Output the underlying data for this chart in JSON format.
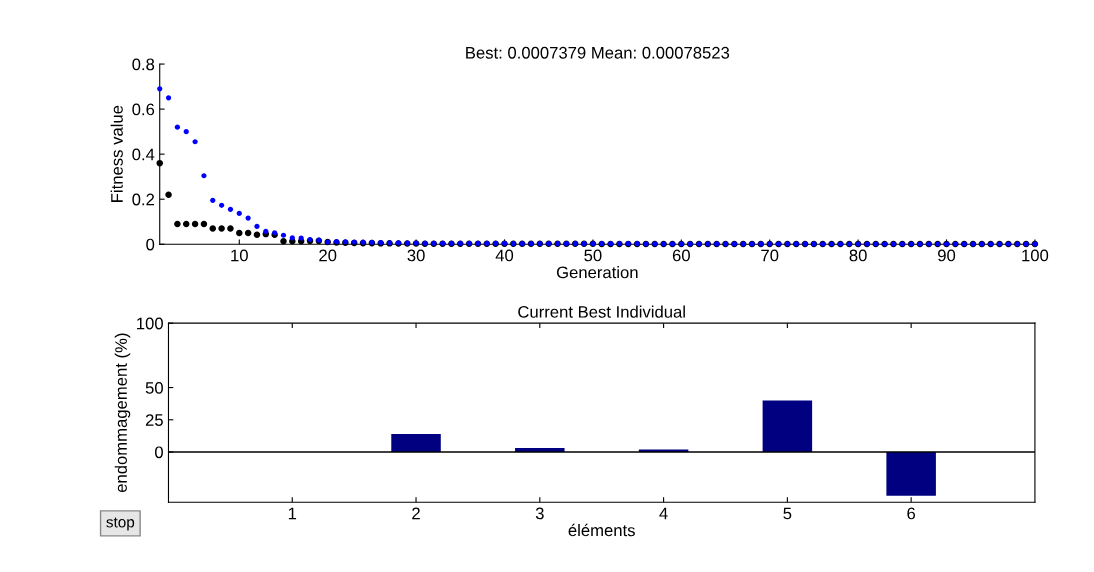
{
  "chart_data": [
    {
      "type": "scatter",
      "title": "Best: 0.0007379 Mean: 0.00078523",
      "xlabel": "Generation",
      "ylabel": "Fitness value",
      "marker": "circle",
      "grid": false,
      "legend": false,
      "x": [
        1,
        2,
        3,
        4,
        5,
        6,
        7,
        8,
        9,
        10,
        11,
        12,
        13,
        14,
        15,
        16,
        17,
        18,
        19,
        20,
        21,
        22,
        23,
        24,
        25,
        26,
        27,
        28,
        29,
        30,
        31,
        32,
        33,
        34,
        35,
        36,
        37,
        38,
        39,
        40,
        41,
        42,
        43,
        44,
        45,
        46,
        47,
        48,
        49,
        50,
        51,
        52,
        53,
        54,
        55,
        56,
        57,
        58,
        59,
        60,
        61,
        62,
        63,
        64,
        65,
        66,
        67,
        68,
        69,
        70,
        71,
        72,
        73,
        74,
        75,
        76,
        77,
        78,
        79,
        80,
        81,
        82,
        83,
        84,
        85,
        86,
        87,
        88,
        89,
        90,
        91,
        92,
        93,
        94,
        95,
        96,
        97,
        98,
        99,
        100
      ],
      "series": [
        {
          "color": "#000000",
          "values": [
            0.36,
            0.22,
            0.09,
            0.09,
            0.09,
            0.09,
            0.07,
            0.07,
            0.07,
            0.05,
            0.05,
            0.042,
            0.045,
            0.042,
            0.013,
            0.013,
            0.013,
            0.015,
            0.015,
            0.01,
            0.008,
            0.007,
            0.006,
            0.005,
            0.005,
            0.004,
            0.004,
            0.003,
            0.003,
            0.003,
            0.002,
            0.002,
            0.002,
            0.002,
            0.002,
            0.002,
            0.002,
            0.002,
            0.002,
            0.002,
            0.002,
            0.002,
            0.002,
            0.002,
            0.002,
            0.002,
            0.002,
            0.002,
            0.002,
            0.002,
            0.001,
            0.001,
            0.001,
            0.001,
            0.001,
            0.001,
            0.001,
            0.001,
            0.001,
            0.001,
            0.001,
            0.001,
            0.001,
            0.001,
            0.001,
            0.001,
            0.001,
            0.001,
            0.001,
            0.001,
            0.001,
            0.001,
            0.001,
            0.001,
            0.001,
            0.001,
            0.001,
            0.001,
            0.001,
            0.001,
            0.001,
            0.001,
            0.001,
            0.001,
            0.001,
            0.001,
            0.001,
            0.001,
            0.001,
            0.001,
            0.001,
            0.001,
            0.001,
            0.001,
            0.001,
            0.001,
            0.001,
            0.001,
            0.001,
            0.001
          ]
        },
        {
          "color": "#0000ff",
          "values": [
            0.69,
            0.65,
            0.52,
            0.5,
            0.455,
            0.304,
            0.195,
            0.173,
            0.155,
            0.137,
            0.116,
            0.079,
            0.057,
            0.051,
            0.04,
            0.028,
            0.027,
            0.021,
            0.018,
            0.01,
            0.012,
            0.011,
            0.01,
            0.009,
            0.008,
            0.007,
            0.006,
            0.006,
            0.005,
            0.005,
            0.004,
            0.004,
            0.004,
            0.004,
            0.004,
            0.004,
            0.004,
            0.004,
            0.004,
            0.004,
            0.003,
            0.003,
            0.003,
            0.003,
            0.003,
            0.003,
            0.003,
            0.003,
            0.003,
            0.003,
            0.003,
            0.003,
            0.003,
            0.003,
            0.003,
            0.002,
            0.002,
            0.002,
            0.002,
            0.002,
            0.002,
            0.002,
            0.002,
            0.002,
            0.002,
            0.002,
            0.002,
            0.002,
            0.002,
            0.002,
            0.002,
            0.002,
            0.002,
            0.002,
            0.002,
            0.001,
            0.001,
            0.001,
            0.001,
            0.001,
            0.001,
            0.001,
            0.001,
            0.001,
            0.001,
            0.001,
            0.001,
            0.001,
            0.001,
            0.001,
            0.001,
            0.001,
            0.001,
            0.001,
            0.001,
            0.001,
            0.001,
            0.001,
            0.001,
            0.001
          ]
        }
      ],
      "xlim": [
        1,
        100
      ],
      "xticks": [
        10,
        20,
        30,
        40,
        50,
        60,
        70,
        80,
        90,
        100
      ],
      "ylim": [
        0,
        0.8
      ],
      "yticks": [
        0,
        0.2,
        0.4,
        0.6,
        0.8
      ]
    },
    {
      "type": "bar",
      "title": "Current Best Individual",
      "xlabel": "éléments",
      "ylabel": "endommagement (%)",
      "grid": false,
      "legend": false,
      "x": [
        1,
        2,
        3,
        4,
        5,
        6
      ],
      "values": [
        0,
        14,
        3,
        2,
        40,
        -34
      ],
      "color": "#000080",
      "xlim": [
        0,
        7
      ],
      "xticks": [
        1,
        2,
        3,
        4,
        5,
        6
      ],
      "ylim": [
        -39,
        100
      ],
      "yticks": [
        0,
        25,
        50,
        100
      ],
      "ref_lines": [
        {
          "axis": "y",
          "value": 0,
          "color": "#000000"
        }
      ],
      "annotations": [
        "stop"
      ]
    }
  ]
}
